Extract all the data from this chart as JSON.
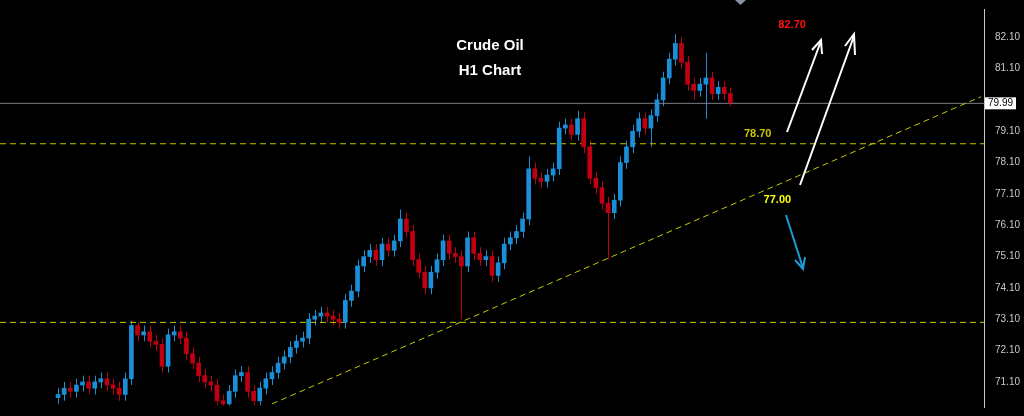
{
  "chart_data": {
    "type": "candlestick",
    "title": "Crude Oil",
    "subtitle": "H1 Chart",
    "categories": [
      null,
      null,
      null,
      null,
      null,
      null,
      null,
      null,
      null,
      null,
      null,
      null,
      null,
      null,
      null,
      null,
      null,
      null,
      null,
      null,
      null,
      null,
      null,
      null,
      null,
      null,
      null,
      null,
      null,
      null,
      null,
      null,
      null,
      null,
      null,
      null,
      null,
      null,
      null,
      null,
      null,
      null,
      null,
      null,
      null,
      null,
      null,
      null,
      null,
      null,
      null,
      null,
      null,
      null,
      null,
      null,
      null,
      null,
      null,
      null,
      null,
      null,
      null,
      null,
      null,
      null,
      null,
      null,
      null,
      null,
      null,
      null,
      null,
      null,
      null,
      null,
      null,
      null,
      null,
      null,
      null,
      null,
      null,
      null,
      null,
      null,
      null,
      null,
      null,
      null,
      null,
      null,
      null,
      null,
      null,
      null,
      null,
      null,
      null,
      null,
      null,
      null,
      null,
      null,
      null,
      null,
      null,
      null,
      null,
      null,
      null,
      null,
      null,
      null,
      null,
      null,
      null,
      null,
      null,
      null,
      null,
      null,
      null,
      null,
      null,
      null,
      null,
      null,
      null,
      null,
      null,
      null,
      null,
      null,
      null,
      null,
      null,
      null,
      null,
      null,
      null,
      null,
      null,
      null,
      null,
      null,
      null,
      null,
      null,
      null,
      null,
      null,
      null,
      null,
      null,
      null,
      null,
      null,
      null,
      null,
      null
    ],
    "ohlc": [
      null,
      null,
      null,
      null,
      null,
      null,
      null,
      null,
      null,
      [
        70.6,
        70.9,
        70.4,
        70.7
      ],
      [
        70.7,
        71.1,
        70.5,
        70.9
      ],
      [
        70.9,
        71.1,
        70.6,
        70.8
      ],
      [
        70.8,
        71.2,
        70.6,
        71.0
      ],
      [
        71.0,
        71.3,
        70.8,
        71.1
      ],
      [
        71.1,
        71.3,
        70.7,
        70.9
      ],
      [
        70.9,
        71.3,
        70.7,
        71.1
      ],
      [
        71.1,
        71.4,
        70.9,
        71.2
      ],
      [
        71.2,
        71.4,
        70.8,
        71.0
      ],
      [
        71.0,
        71.2,
        70.7,
        70.9
      ],
      [
        70.9,
        71.1,
        70.5,
        70.7
      ],
      [
        70.7,
        71.4,
        70.5,
        71.2
      ],
      [
        71.2,
        73.05,
        71.0,
        72.9
      ],
      [
        72.9,
        73.0,
        72.4,
        72.6
      ],
      [
        72.6,
        72.9,
        72.4,
        72.7
      ],
      [
        72.7,
        72.9,
        72.2,
        72.4
      ],
      [
        72.4,
        72.6,
        72.1,
        72.3
      ],
      [
        72.3,
        72.5,
        71.4,
        71.6
      ],
      [
        71.6,
        72.8,
        71.4,
        72.6
      ],
      [
        72.6,
        72.9,
        72.4,
        72.7
      ],
      [
        72.7,
        72.9,
        72.3,
        72.5
      ],
      [
        72.5,
        72.7,
        71.8,
        72.0
      ],
      [
        72.0,
        72.2,
        71.5,
        71.7
      ],
      [
        71.7,
        71.9,
        71.1,
        71.3
      ],
      [
        71.3,
        71.5,
        70.9,
        71.1
      ],
      [
        71.1,
        71.3,
        70.8,
        71.0
      ],
      [
        71.0,
        71.2,
        70.35,
        70.5
      ],
      [
        70.5,
        70.7,
        70.35,
        70.4
      ],
      [
        70.4,
        71.0,
        70.35,
        70.8
      ],
      [
        70.8,
        71.5,
        70.6,
        71.3
      ],
      [
        71.3,
        71.6,
        71.1,
        71.4
      ],
      [
        71.4,
        71.6,
        70.6,
        70.8
      ],
      [
        70.8,
        71.0,
        70.35,
        70.5
      ],
      [
        70.5,
        71.1,
        70.35,
        70.9
      ],
      [
        70.9,
        71.4,
        70.7,
        71.2
      ],
      [
        71.2,
        71.6,
        71.0,
        71.4
      ],
      [
        71.4,
        71.9,
        71.2,
        71.7
      ],
      [
        71.7,
        72.1,
        71.5,
        71.9
      ],
      [
        71.9,
        72.4,
        71.7,
        72.2
      ],
      [
        72.2,
        72.6,
        72.0,
        72.4
      ],
      [
        72.4,
        72.7,
        72.2,
        72.5
      ],
      [
        72.5,
        73.3,
        72.3,
        73.1
      ],
      [
        73.1,
        73.4,
        72.9,
        73.2
      ],
      [
        73.2,
        73.5,
        73.0,
        73.3
      ],
      [
        73.3,
        73.5,
        73.0,
        73.2
      ],
      [
        73.2,
        73.4,
        72.9,
        73.1
      ],
      [
        73.1,
        73.3,
        72.8,
        73.0
      ],
      [
        73.0,
        73.9,
        72.8,
        73.7
      ],
      [
        73.7,
        74.2,
        73.5,
        74.0
      ],
      [
        74.0,
        75.0,
        73.8,
        74.8
      ],
      [
        74.8,
        75.3,
        74.6,
        75.1
      ],
      [
        75.1,
        75.5,
        74.9,
        75.3
      ],
      [
        75.3,
        75.5,
        74.8,
        75.0
      ],
      [
        75.0,
        75.7,
        74.8,
        75.5
      ],
      [
        75.5,
        75.7,
        75.1,
        75.3
      ],
      [
        75.3,
        75.8,
        75.1,
        75.6
      ],
      [
        75.6,
        76.6,
        75.4,
        76.3
      ],
      [
        76.3,
        76.5,
        75.7,
        75.9
      ],
      [
        75.9,
        76.1,
        74.8,
        75.0
      ],
      [
        75.0,
        75.2,
        74.4,
        74.6
      ],
      [
        74.6,
        74.8,
        73.9,
        74.1
      ],
      [
        74.1,
        74.8,
        73.9,
        74.6
      ],
      [
        74.6,
        75.2,
        74.4,
        75.0
      ],
      [
        75.0,
        75.8,
        74.8,
        75.6
      ],
      [
        75.6,
        75.8,
        75.0,
        75.2
      ],
      [
        75.2,
        75.4,
        74.9,
        75.1
      ],
      [
        75.1,
        75.3,
        73.1,
        74.8
      ],
      [
        74.8,
        75.9,
        74.6,
        75.7
      ],
      [
        75.7,
        75.9,
        75.0,
        75.2
      ],
      [
        75.2,
        75.4,
        74.8,
        75.0
      ],
      [
        75.0,
        75.3,
        74.8,
        75.1
      ],
      [
        75.1,
        75.3,
        74.3,
        74.5
      ],
      [
        74.5,
        75.1,
        74.3,
        74.9
      ],
      [
        74.9,
        75.7,
        74.7,
        75.5
      ],
      [
        75.5,
        75.9,
        75.3,
        75.7
      ],
      [
        75.7,
        76.1,
        75.5,
        75.9
      ],
      [
        75.9,
        76.5,
        75.7,
        76.3
      ],
      [
        76.3,
        78.3,
        76.1,
        77.9
      ],
      [
        77.9,
        78.1,
        77.4,
        77.6
      ],
      [
        77.6,
        77.8,
        77.3,
        77.5
      ],
      [
        77.5,
        77.9,
        77.3,
        77.7
      ],
      [
        77.7,
        78.1,
        77.5,
        77.9
      ],
      [
        77.9,
        79.4,
        77.7,
        79.2
      ],
      [
        79.2,
        79.5,
        79.0,
        79.3
      ],
      [
        79.3,
        79.5,
        78.8,
        79.0
      ],
      [
        79.0,
        79.75,
        78.8,
        79.5
      ],
      [
        79.5,
        79.7,
        78.4,
        78.6
      ],
      [
        78.6,
        78.8,
        77.4,
        77.6
      ],
      [
        77.6,
        77.8,
        77.1,
        77.3
      ],
      [
        77.3,
        77.5,
        76.6,
        76.8
      ],
      [
        76.8,
        77.0,
        75.0,
        76.5
      ],
      [
        76.5,
        77.1,
        76.3,
        76.9
      ],
      [
        76.9,
        78.3,
        76.7,
        78.1
      ],
      [
        78.1,
        78.8,
        77.9,
        78.6
      ],
      [
        78.6,
        79.3,
        78.4,
        79.1
      ],
      [
        79.1,
        79.7,
        78.9,
        79.5
      ],
      [
        79.5,
        79.7,
        79.0,
        79.2
      ],
      [
        79.2,
        79.8,
        78.6,
        79.6
      ],
      [
        79.6,
        80.3,
        79.4,
        80.1
      ],
      [
        80.1,
        81.0,
        79.9,
        80.8
      ],
      [
        80.8,
        81.6,
        80.6,
        81.4
      ],
      [
        81.4,
        82.2,
        81.2,
        81.9
      ],
      [
        81.9,
        82.1,
        81.1,
        81.3
      ],
      [
        81.3,
        81.5,
        80.4,
        80.6
      ],
      [
        80.6,
        80.8,
        80.1,
        80.4
      ],
      [
        80.4,
        80.8,
        80.2,
        80.6
      ],
      [
        80.6,
        81.6,
        79.5,
        80.8
      ],
      [
        80.8,
        81.0,
        80.1,
        80.3
      ],
      [
        80.3,
        80.7,
        80.1,
        80.5
      ],
      [
        80.5,
        80.7,
        80.1,
        80.3
      ],
      [
        80.3,
        80.5,
        79.9,
        80.0
      ],
      null,
      null,
      null,
      null,
      null,
      null,
      null,
      null,
      null,
      null,
      null,
      null,
      null,
      null,
      null,
      null,
      null,
      null,
      null,
      null,
      null,
      null,
      null,
      null,
      null,
      null,
      null,
      null,
      null,
      null,
      null,
      null,
      null,
      null,
      null,
      null,
      null,
      null,
      null,
      null,
      null
    ],
    "colors": [
      null,
      null,
      null,
      null,
      null,
      null,
      null,
      null,
      null,
      "#1a8fd8",
      "#1a8fd8",
      "#c00010",
      "#1a8fd8",
      "#1a8fd8",
      "#c00010",
      "#1a8fd8",
      "#1a8fd8",
      "#c00010",
      "#c00010",
      "#c00010",
      "#1a8fd8",
      "#1a8fd8",
      "#c00010",
      "#1a8fd8",
      "#c00010",
      "#c00010",
      "#c00010",
      "#1a8fd8",
      "#1a8fd8",
      "#c00010",
      "#c00010",
      "#c00010",
      "#c00010",
      "#c00010",
      "#c00010",
      "#c00010",
      "#c00010",
      "#1a8fd8",
      "#1a8fd8",
      "#1a8fd8",
      "#c00010",
      "#c00010",
      "#1a8fd8",
      "#1a8fd8",
      "#1a8fd8",
      "#1a8fd8",
      "#1a8fd8",
      "#1a8fd8",
      "#1a8fd8",
      "#1a8fd8",
      "#1a8fd8",
      "#1a8fd8",
      "#1a8fd8",
      "#c00010",
      "#c00010",
      "#c00010",
      "#1a8fd8",
      "#1a8fd8",
      "#1a8fd8",
      "#1a8fd8",
      "#1a8fd8",
      "#c00010",
      "#1a8fd8",
      "#c00010",
      "#1a8fd8",
      "#1a8fd8",
      "#c00010",
      "#c00010",
      "#c00010",
      "#c00010",
      "#1a8fd8",
      "#1a8fd8",
      "#1a8fd8",
      "#c00010",
      "#c00010",
      "#c00010",
      "#1a8fd8",
      "#c00010",
      "#c00010",
      "#1a8fd8",
      "#c00010",
      "#1a8fd8",
      "#1a8fd8",
      "#1a8fd8",
      "#1a8fd8",
      "#1a8fd8",
      "#1a8fd8",
      "#c00010",
      "#c00010",
      "#1a8fd8",
      "#1a8fd8",
      "#1a8fd8",
      "#1a8fd8",
      "#c00010",
      "#1a8fd8",
      "#c00010",
      "#c00010",
      "#c00010",
      "#c00010",
      "#c00010",
      "#1a8fd8",
      "#1a8fd8",
      "#1a8fd8",
      "#1a8fd8",
      "#1a8fd8",
      "#c00010",
      "#1a8fd8",
      "#1a8fd8",
      "#1a8fd8",
      "#1a8fd8",
      "#1a8fd8",
      "#c00010",
      "#c00010",
      "#c00010",
      "#1a8fd8",
      "#1a8fd8",
      "#c00010",
      "#1a8fd8",
      "#c00010",
      "#c00010",
      null,
      null,
      null,
      null,
      null,
      null,
      null,
      null,
      null,
      null,
      null,
      null,
      null,
      null,
      null,
      null,
      null,
      null,
      null,
      null,
      null,
      null,
      null,
      null,
      null,
      null,
      null,
      null,
      null,
      null,
      null,
      null,
      null,
      null,
      null,
      null,
      null,
      null,
      null,
      null,
      null
    ],
    "series": [
      {
        "type": "line",
        "values": [
          null,
          null,
          null,
          null,
          null,
          null,
          null,
          null,
          null,
          null,
          null,
          null,
          null,
          null,
          null,
          null,
          null,
          null,
          null,
          null,
          null,
          null,
          null,
          null,
          null,
          null,
          null,
          null,
          null,
          null,
          null,
          null,
          null,
          null,
          null,
          null,
          null,
          null,
          null,
          null,
          null,
          null,
          null,
          null,
          70.4,
          null,
          null,
          null,
          null,
          null,
          null,
          null,
          null,
          null,
          null,
          null,
          null,
          null,
          null,
          null,
          null,
          null,
          null,
          null,
          null,
          null,
          null,
          null,
          null,
          null,
          null,
          null,
          null,
          null,
          null,
          null,
          null,
          null,
          null,
          null,
          null,
          null,
          null,
          null,
          null,
          null,
          null,
          null,
          null,
          null,
          null,
          null,
          null,
          null,
          null,
          null,
          null,
          null,
          null,
          null,
          null,
          null,
          null,
          null,
          null,
          null,
          null,
          null,
          null,
          null,
          null,
          null,
          null,
          null,
          null,
          null,
          null,
          null,
          null,
          null,
          null,
          null,
          null,
          null,
          null,
          null,
          null,
          null,
          null,
          null,
          null,
          null,
          null,
          null,
          null,
          null,
          null,
          null,
          null,
          null,
          null,
          null,
          null,
          null,
          null,
          null,
          null,
          null,
          null,
          null,
          null,
          null,
          null,
          null,
          null,
          null,
          null,
          null,
          null,
          null,
          80.2
        ],
        "color": "#c8c800",
        "line_style": "dashed"
      }
    ],
    "ylim": [
      70.3,
      83.0
    ],
    "yticks": [
      {
        "value": 71.1,
        "label": "71.10"
      },
      {
        "value": 72.1,
        "label": "72.10"
      },
      {
        "value": 73.1,
        "label": "73.10"
      },
      {
        "value": 74.1,
        "label": "74.10"
      },
      {
        "value": 75.1,
        "label": "75.10"
      },
      {
        "value": 76.1,
        "label": "76.10"
      },
      {
        "value": 77.1,
        "label": "77.10"
      },
      {
        "value": 78.1,
        "label": "78.10"
      },
      {
        "value": 79.1,
        "label": "79.10"
      },
      {
        "value": 81.1,
        "label": "81.10"
      },
      {
        "value": 82.1,
        "label": "82.10"
      }
    ],
    "ref_lines": [
      {
        "axis": "y",
        "value": 73.0,
        "label": null,
        "color": "#c8c800",
        "line_style": "dashed"
      },
      {
        "axis": "y",
        "value": 78.7,
        "label": "78.70",
        "color": "#c8c800",
        "line_style": "dashed"
      },
      {
        "axis": "y",
        "value": 79.99,
        "label": "79.99",
        "color": "#7a7e88",
        "line_style": "solid"
      }
    ],
    "annotations": [
      "82.70",
      "77.00"
    ],
    "tick_labels": "y",
    "grid": false,
    "legend": false
  }
}
